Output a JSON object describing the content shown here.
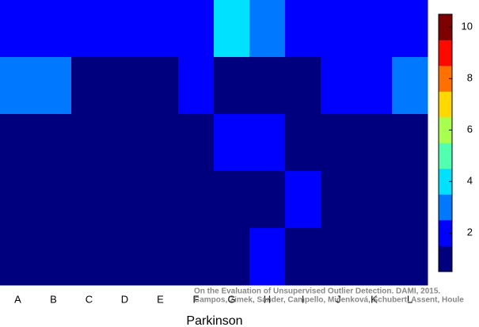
{
  "chart_data": {
    "type": "heatmap",
    "x_label": "Parkinson",
    "categories": [
      "A",
      "B",
      "C",
      "D",
      "E",
      "F",
      "G",
      "H",
      "I",
      "J",
      "K",
      "L"
    ],
    "values": [
      [
        2,
        2,
        2,
        2,
        2,
        2,
        4,
        3,
        2,
        2,
        2,
        2
      ],
      [
        3,
        3,
        1,
        1,
        1,
        2,
        1,
        1,
        1,
        2,
        2,
        3
      ],
      [
        1,
        1,
        1,
        1,
        1,
        1,
        2,
        2,
        1,
        1,
        1,
        1
      ],
      [
        1,
        1,
        1,
        1,
        1,
        1,
        1,
        1,
        2,
        1,
        1,
        1
      ],
      [
        1,
        1,
        1,
        1,
        1,
        1,
        1,
        2,
        1,
        1,
        1,
        1
      ]
    ],
    "colorbar": {
      "lim": [
        0.5,
        10.5
      ],
      "ticks": [
        2,
        4,
        6,
        8,
        10
      ],
      "colors": [
        "#00007f",
        "#0000ff",
        "#0078ff",
        "#00e0ff",
        "#50ffaf",
        "#a8ff50",
        "#ffd800",
        "#ff7000",
        "#ff0800",
        "#7f0000"
      ]
    },
    "annotations": [
      "On the Evaluation of Unsupervised Outlier Detection. DAMI, 2015.",
      "Campos, Zimek, Sander, Campello, Micenková, Schubert, Assent, Houle"
    ]
  }
}
